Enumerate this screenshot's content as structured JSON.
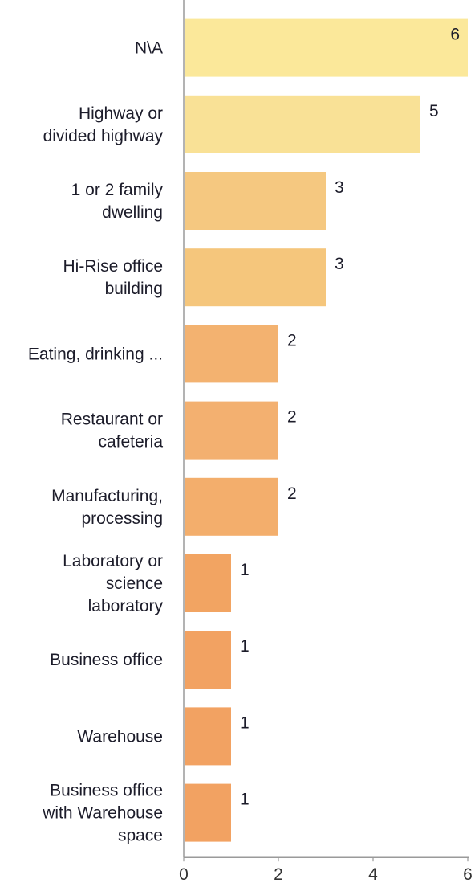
{
  "chart_data": {
    "type": "bar",
    "orientation": "horizontal",
    "categories": [
      "N\\A",
      "Highway or divided highway",
      "1 or 2 family dwelling",
      "Hi-Rise office building",
      "Eating, drinking ...",
      "Restaurant or cafeteria",
      "Manufacturing, processing",
      "Laboratory or science laboratory",
      "Business office",
      "Warehouse",
      "Business office with Warehouse space"
    ],
    "category_lines": [
      [
        "N\\A"
      ],
      [
        "Highway or",
        "divided highway"
      ],
      [
        "1 or 2 family",
        "dwelling"
      ],
      [
        "Hi-Rise office",
        "building"
      ],
      [
        "Eating, drinking ..."
      ],
      [
        "Restaurant or",
        "cafeteria"
      ],
      [
        "Manufacturing,",
        "processing"
      ],
      [
        "Laboratory or",
        "science",
        "laboratory"
      ],
      [
        "Business office"
      ],
      [
        "Warehouse"
      ],
      [
        "Business office",
        "with Warehouse",
        "space"
      ]
    ],
    "values": [
      6,
      5,
      3,
      3,
      2,
      2,
      2,
      1,
      1,
      1,
      1
    ],
    "value_labels": [
      "6",
      "5",
      "3",
      "3",
      "2",
      "2",
      "2",
      "1",
      "1",
      "1",
      "1"
    ],
    "xlim": [
      0,
      6
    ],
    "xticks": [
      0,
      2,
      4,
      6
    ],
    "xtick_labels": [
      "0",
      "2",
      "4",
      "6"
    ],
    "title": "",
    "xlabel": "",
    "ylabel": "",
    "grid": false,
    "bar_colors": [
      "#fbe89a",
      "#f9e196",
      "#f5c880",
      "#f5c67c",
      "#f3b270",
      "#f3b070",
      "#f3ae6c",
      "#f2a462",
      "#f2a262",
      "#f2a262",
      "#f2a262"
    ],
    "axis_color": "#9a9a9a"
  }
}
